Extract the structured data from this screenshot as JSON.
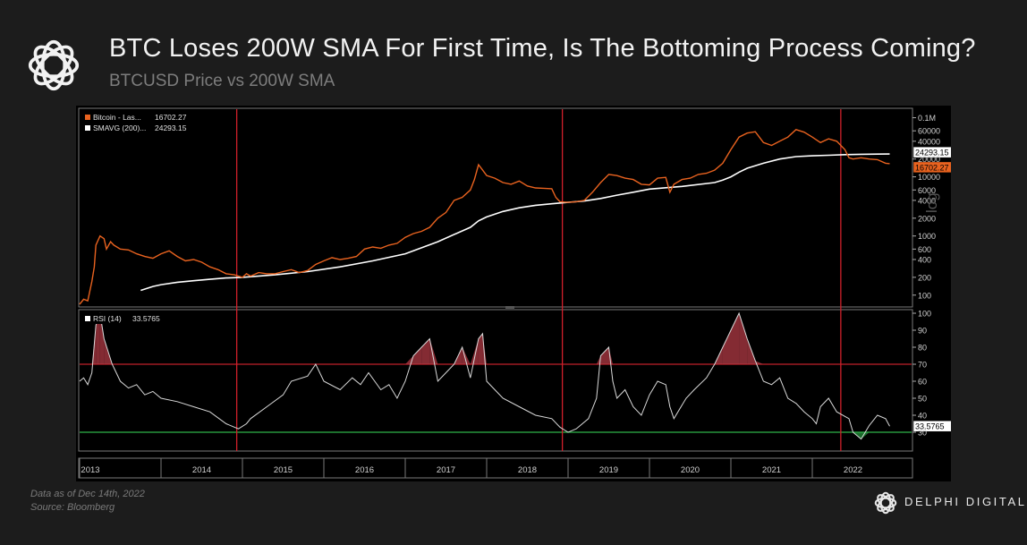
{
  "header": {
    "title": "BTC Loses 200W SMA For First Time, Is The Bottoming Process Coming?",
    "subtitle": "BTCUSD Price vs 200W SMA"
  },
  "footer": {
    "note": "Data as of Dec 14th, 2022",
    "source": "Source: Bloomberg"
  },
  "brand": {
    "name": "DELPHI DIGITAL",
    "logo_icon": "interlocked-rings-icon"
  },
  "colors": {
    "background": "#1c1c1c",
    "chart_bg": "#000000",
    "price": "#e8621f",
    "sma": "#ffffff",
    "rsi": "#d9d9d9",
    "overbought": "#c0202a",
    "oversold": "#2fb34a",
    "cycle_marker": "#d0202a"
  },
  "chart_data": [
    {
      "type": "line",
      "panel": "price",
      "scale": "log",
      "ylim": [
        70,
        130000
      ],
      "xlim": [
        2013.0,
        2023.0
      ],
      "y_ticks": [
        100,
        200,
        400,
        600,
        1000,
        2000,
        4000,
        6000,
        10000,
        20000,
        40000,
        60000,
        100000
      ],
      "y_tick_labels": [
        "100",
        "200",
        "400",
        "600",
        "1000",
        "2000",
        "4000",
        "6000",
        "10000",
        "20000",
        "40000",
        "60000",
        "0.1M"
      ],
      "y_axis_word": "log",
      "legend_placement": "top-left",
      "series": [
        {
          "name": "Bitcoin - Las...",
          "last_value_label": "16702.27",
          "color": "#e8621f",
          "x": [
            2013.0,
            2013.05,
            2013.1,
            2013.15,
            2013.18,
            2013.2,
            2013.25,
            2013.3,
            2013.33,
            2013.38,
            2013.42,
            2013.5,
            2013.6,
            2013.7,
            2013.8,
            2013.9,
            2014.0,
            2014.1,
            2014.2,
            2014.3,
            2014.4,
            2014.5,
            2014.6,
            2014.7,
            2014.8,
            2014.9,
            2015.0,
            2015.05,
            2015.1,
            2015.2,
            2015.3,
            2015.4,
            2015.5,
            2015.6,
            2015.7,
            2015.8,
            2015.9,
            2016.0,
            2016.1,
            2016.2,
            2016.3,
            2016.4,
            2016.5,
            2016.6,
            2016.7,
            2016.8,
            2016.9,
            2017.0,
            2017.1,
            2017.2,
            2017.3,
            2017.4,
            2017.5,
            2017.6,
            2017.7,
            2017.8,
            2017.85,
            2017.9,
            2017.95,
            2018.0,
            2018.1,
            2018.2,
            2018.3,
            2018.4,
            2018.5,
            2018.6,
            2018.7,
            2018.8,
            2018.85,
            2018.9,
            2019.0,
            2019.1,
            2019.2,
            2019.3,
            2019.4,
            2019.5,
            2019.6,
            2019.7,
            2019.8,
            2019.9,
            2020.0,
            2020.1,
            2020.2,
            2020.25,
            2020.3,
            2020.4,
            2020.5,
            2020.6,
            2020.7,
            2020.8,
            2020.9,
            2021.0,
            2021.1,
            2021.2,
            2021.3,
            2021.4,
            2021.5,
            2021.6,
            2021.7,
            2021.8,
            2021.9,
            2022.0,
            2022.1,
            2022.2,
            2022.3,
            2022.4,
            2022.45,
            2022.5,
            2022.6,
            2022.7,
            2022.8,
            2022.9,
            2022.95
          ],
          "values": [
            70,
            85,
            80,
            170,
            300,
            700,
            1000,
            900,
            600,
            800,
            700,
            600,
            580,
            500,
            450,
            420,
            500,
            560,
            450,
            380,
            400,
            360,
            300,
            270,
            230,
            220,
            200,
            230,
            210,
            240,
            230,
            230,
            250,
            270,
            240,
            260,
            330,
            380,
            430,
            400,
            420,
            450,
            600,
            650,
            620,
            700,
            750,
            950,
            1100,
            1200,
            1400,
            2000,
            2500,
            4000,
            4500,
            6000,
            9000,
            16000,
            13000,
            10500,
            9500,
            8000,
            7500,
            8500,
            7000,
            6500,
            6400,
            6300,
            4500,
            3800,
            3700,
            3800,
            4000,
            5500,
            8000,
            11000,
            10500,
            9500,
            9000,
            7500,
            7300,
            9500,
            9800,
            5500,
            7500,
            9000,
            9500,
            11000,
            11500,
            13000,
            17000,
            29000,
            47000,
            55000,
            58000,
            38000,
            34000,
            40000,
            47000,
            63000,
            57000,
            47000,
            38000,
            44000,
            40000,
            29000,
            21000,
            20000,
            21000,
            20000,
            19500,
            17000,
            16702
          ]
        },
        {
          "name": "SMAVG (200)...",
          "last_value_label": "24293.15",
          "color": "#ffffff",
          "x": [
            2013.75,
            2013.9,
            2014.0,
            2014.2,
            2014.4,
            2014.6,
            2014.8,
            2015.0,
            2015.4,
            2015.8,
            2016.2,
            2016.6,
            2017.0,
            2017.4,
            2017.8,
            2017.9,
            2018.0,
            2018.2,
            2018.4,
            2018.6,
            2018.8,
            2019.0,
            2019.2,
            2019.4,
            2019.6,
            2019.8,
            2020.0,
            2020.4,
            2020.8,
            2020.9,
            2021.0,
            2021.1,
            2021.2,
            2021.4,
            2021.6,
            2021.8,
            2022.0,
            2022.2,
            2022.4,
            2022.6,
            2022.8,
            2022.95
          ],
          "values": [
            120,
            140,
            150,
            165,
            175,
            185,
            195,
            200,
            220,
            250,
            300,
            380,
            500,
            800,
            1400,
            1800,
            2100,
            2600,
            3000,
            3300,
            3500,
            3700,
            3900,
            4300,
            4900,
            5500,
            6200,
            6900,
            8000,
            8800,
            10000,
            12000,
            14000,
            17000,
            20000,
            22000,
            22700,
            23200,
            23700,
            24100,
            24250,
            24293
          ]
        }
      ],
      "annotations": [
        {
          "label": "24293.15",
          "value": 24293.15
        },
        {
          "label": "16702.27",
          "value": 16702.27
        }
      ]
    },
    {
      "type": "line",
      "panel": "rsi",
      "ylim": [
        20,
        100
      ],
      "xlim": [
        2013.0,
        2023.0
      ],
      "y_ticks": [
        30,
        40,
        50,
        60,
        70,
        80,
        90,
        100
      ],
      "y_tick_labels": [
        "30",
        "40",
        "50",
        "60",
        "70",
        "80",
        "90",
        "100"
      ],
      "legend_placement": "top-left",
      "reference_lines": [
        {
          "name": "overbought",
          "value": 70,
          "color": "#c0202a"
        },
        {
          "name": "oversold",
          "value": 30,
          "color": "#2fb34a"
        }
      ],
      "series": [
        {
          "name": "RSI (14)",
          "last_value_label": "33.5765",
          "color": "#d9d9d9",
          "x": [
            2013.0,
            2013.05,
            2013.1,
            2013.15,
            2013.2,
            2013.25,
            2013.3,
            2013.4,
            2013.5,
            2013.6,
            2013.7,
            2013.8,
            2013.9,
            2014.0,
            2014.2,
            2014.4,
            2014.6,
            2014.8,
            2014.95,
            2015.05,
            2015.1,
            2015.3,
            2015.5,
            2015.6,
            2015.8,
            2015.9,
            2016.0,
            2016.2,
            2016.35,
            2016.45,
            2016.55,
            2016.7,
            2016.8,
            2016.9,
            2017.0,
            2017.1,
            2017.2,
            2017.3,
            2017.4,
            2017.5,
            2017.6,
            2017.7,
            2017.8,
            2017.9,
            2017.95,
            2018.0,
            2018.1,
            2018.2,
            2018.4,
            2018.6,
            2018.8,
            2018.9,
            2019.0,
            2019.1,
            2019.25,
            2019.35,
            2019.4,
            2019.5,
            2019.55,
            2019.6,
            2019.7,
            2019.8,
            2019.9,
            2020.0,
            2020.1,
            2020.2,
            2020.25,
            2020.3,
            2020.45,
            2020.55,
            2020.7,
            2020.8,
            2020.9,
            2021.0,
            2021.1,
            2021.2,
            2021.3,
            2021.4,
            2021.5,
            2021.6,
            2021.7,
            2021.8,
            2021.9,
            2022.0,
            2022.05,
            2022.1,
            2022.2,
            2022.3,
            2022.45,
            2022.5,
            2022.6,
            2022.7,
            2022.8,
            2022.9,
            2022.95
          ],
          "values": [
            60,
            62,
            58,
            65,
            93,
            100,
            85,
            70,
            60,
            56,
            58,
            52,
            54,
            50,
            48,
            45,
            42,
            35,
            32,
            35,
            38,
            45,
            52,
            60,
            63,
            70,
            60,
            55,
            62,
            58,
            65,
            55,
            58,
            50,
            60,
            75,
            80,
            85,
            60,
            65,
            70,
            80,
            62,
            85,
            88,
            60,
            55,
            50,
            45,
            40,
            38,
            33,
            30,
            32,
            38,
            50,
            75,
            80,
            60,
            50,
            55,
            45,
            40,
            52,
            60,
            58,
            45,
            38,
            50,
            55,
            62,
            70,
            80,
            90,
            100,
            85,
            72,
            60,
            58,
            62,
            50,
            47,
            42,
            38,
            35,
            45,
            50,
            42,
            38,
            30,
            26,
            34,
            40,
            38,
            33.5765
          ]
        }
      ]
    }
  ],
  "x_axis": {
    "tick_labels": [
      "2013",
      "2014",
      "2015",
      "2016",
      "2017",
      "2018",
      "2019",
      "2020",
      "2021",
      "2022"
    ],
    "cycle_markers": [
      2014.93,
      2018.93,
      2022.35
    ]
  }
}
